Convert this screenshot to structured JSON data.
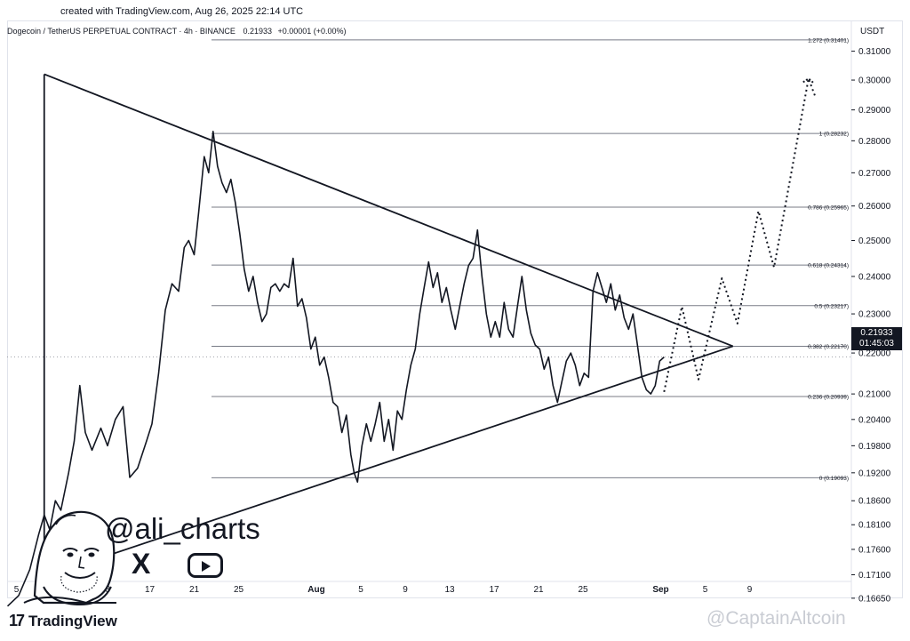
{
  "header": {
    "created": "created with TradingView.com, Aug 26, 2025 22:14 UTC",
    "symbol": "Dogecoin / TetherUS PERPETUAL CONTRACT · 4h · BINANCE",
    "last": "0.21933",
    "change": "+0.00001 (+0.00%)"
  },
  "currency": "USDT",
  "price_badge": {
    "price": "0.21933",
    "countdown": "01:45:03"
  },
  "handle": "@ali_charts",
  "social_x": "X",
  "logo": {
    "mark": "17",
    "word": "TradingView"
  },
  "watermark": "@CaptainAltcoin",
  "chart_data": {
    "type": "line",
    "title": "Dogecoin / TetherUS PERPETUAL CONTRACT · 4h · BINANCE",
    "ylabel": "USDT",
    "y_axis": "log",
    "ylim": [
      0.162,
      0.322
    ],
    "y_ticks": [
      "0.31000",
      "0.30000",
      "0.29000",
      "0.28000",
      "0.27000",
      "0.26000",
      "0.25000",
      "0.24000",
      "0.23000",
      "0.22000",
      "0.21000",
      "0.20400",
      "0.19800",
      "0.19200",
      "0.18600",
      "0.18100",
      "0.17600",
      "0.17100",
      "0.16650"
    ],
    "x_ticks": [
      "5",
      "9",
      "13",
      "17",
      "21",
      "25",
      "Aug",
      "5",
      "9",
      "13",
      "17",
      "21",
      "25",
      "Sep",
      "5",
      "9"
    ],
    "x_tick_days": [
      5,
      9,
      13,
      17,
      21,
      25,
      32,
      36,
      40,
      44,
      48,
      52,
      56,
      63,
      67,
      71
    ],
    "fib_levels": [
      {
        "ratio": "1.272",
        "price": 0.31401,
        "label": "1.272 (0.31401)"
      },
      {
        "ratio": "1",
        "price": 0.28232,
        "label": "1 (0.28232)"
      },
      {
        "ratio": "0.786",
        "price": 0.25965,
        "label": "0.786 (0.25965)"
      },
      {
        "ratio": "0.618",
        "price": 0.24314,
        "label": "0.618 (0.24314)"
      },
      {
        "ratio": "0.5",
        "price": 0.23217,
        "label": "0.5 (0.23217)"
      },
      {
        "ratio": "0.382",
        "price": 0.2217,
        "label": "0.382 (0.22170)"
      },
      {
        "ratio": "0.236",
        "price": 0.20939,
        "label": "0.236 (0.20939)"
      },
      {
        "ratio": "0",
        "price": 0.19093,
        "label": "0 (0.19093)"
      }
    ],
    "triangle": {
      "upper": [
        [
          7.5,
          0.302
        ],
        [
          69.5,
          0.2217
        ]
      ],
      "lower": [
        [
          7.5,
          0.1706
        ],
        [
          69.5,
          0.2217
        ]
      ],
      "left_edge": [
        [
          7.5,
          0.302
        ],
        [
          7.5,
          0.1706
        ]
      ]
    },
    "series": [
      {
        "points": [
          [
            4.2,
            0.165
          ],
          [
            5.2,
            0.167
          ],
          [
            6.2,
            0.172
          ],
          [
            7,
            0.179
          ],
          [
            7.5,
            0.183
          ],
          [
            8,
            0.18
          ],
          [
            8.5,
            0.186
          ],
          [
            9,
            0.184
          ],
          [
            9.7,
            0.192
          ],
          [
            10.2,
            0.199
          ],
          [
            10.7,
            0.212
          ],
          [
            11.2,
            0.201
          ],
          [
            11.8,
            0.197
          ],
          [
            12.6,
            0.202
          ],
          [
            13.2,
            0.198
          ],
          [
            13.9,
            0.204
          ],
          [
            14.6,
            0.207
          ],
          [
            15.2,
            0.191
          ],
          [
            15.9,
            0.193
          ],
          [
            16.7,
            0.199
          ],
          [
            17.2,
            0.203
          ],
          [
            17.8,
            0.215
          ],
          [
            18.4,
            0.231
          ],
          [
            19,
            0.238
          ],
          [
            19.6,
            0.236
          ],
          [
            20.1,
            0.248
          ],
          [
            20.5,
            0.25
          ],
          [
            21,
            0.246
          ],
          [
            21.4,
            0.258
          ],
          [
            21.9,
            0.275
          ],
          [
            22.3,
            0.27
          ],
          [
            22.7,
            0.283
          ],
          [
            23.1,
            0.272
          ],
          [
            23.5,
            0.267
          ],
          [
            23.9,
            0.264
          ],
          [
            24.3,
            0.268
          ],
          [
            24.7,
            0.261
          ],
          [
            25.1,
            0.252
          ],
          [
            25.5,
            0.242
          ],
          [
            25.9,
            0.236
          ],
          [
            26.3,
            0.24
          ],
          [
            26.7,
            0.233
          ],
          [
            27.1,
            0.228
          ],
          [
            27.5,
            0.23
          ],
          [
            27.9,
            0.237
          ],
          [
            28.3,
            0.238
          ],
          [
            28.7,
            0.236
          ],
          [
            29.1,
            0.238
          ],
          [
            29.5,
            0.237
          ],
          [
            29.9,
            0.245
          ],
          [
            30.3,
            0.232
          ],
          [
            30.7,
            0.234
          ],
          [
            31.1,
            0.229
          ],
          [
            31.5,
            0.221
          ],
          [
            31.9,
            0.224
          ],
          [
            32.3,
            0.217
          ],
          [
            32.7,
            0.219
          ],
          [
            33.1,
            0.214
          ],
          [
            33.5,
            0.208
          ],
          [
            33.9,
            0.207
          ],
          [
            34.3,
            0.201
          ],
          [
            34.7,
            0.205
          ],
          [
            35.1,
            0.196
          ],
          [
            35.4,
            0.192
          ],
          [
            35.7,
            0.19
          ],
          [
            36.1,
            0.198
          ],
          [
            36.5,
            0.203
          ],
          [
            36.9,
            0.199
          ],
          [
            37.3,
            0.203
          ],
          [
            37.7,
            0.208
          ],
          [
            38.1,
            0.199
          ],
          [
            38.5,
            0.204
          ],
          [
            38.9,
            0.197
          ],
          [
            39.3,
            0.206
          ],
          [
            39.7,
            0.204
          ],
          [
            40.1,
            0.211
          ],
          [
            40.5,
            0.217
          ],
          [
            40.9,
            0.221
          ],
          [
            41.3,
            0.23
          ],
          [
            41.7,
            0.237
          ],
          [
            42.1,
            0.244
          ],
          [
            42.5,
            0.237
          ],
          [
            42.9,
            0.241
          ],
          [
            43.3,
            0.233
          ],
          [
            43.7,
            0.237
          ],
          [
            44.1,
            0.231
          ],
          [
            44.5,
            0.226
          ],
          [
            44.9,
            0.232
          ],
          [
            45.3,
            0.238
          ],
          [
            45.7,
            0.243
          ],
          [
            46.1,
            0.245
          ],
          [
            46.5,
            0.253
          ],
          [
            46.9,
            0.24
          ],
          [
            47.3,
            0.23
          ],
          [
            47.7,
            0.224
          ],
          [
            48.1,
            0.228
          ],
          [
            48.5,
            0.224
          ],
          [
            48.9,
            0.233
          ],
          [
            49.3,
            0.226
          ],
          [
            49.7,
            0.224
          ],
          [
            50.1,
            0.232
          ],
          [
            50.5,
            0.24
          ],
          [
            50.9,
            0.231
          ],
          [
            51.3,
            0.225
          ],
          [
            51.7,
            0.222
          ],
          [
            52.1,
            0.221
          ],
          [
            52.5,
            0.216
          ],
          [
            52.9,
            0.219
          ],
          [
            53.3,
            0.212
          ],
          [
            53.7,
            0.208
          ],
          [
            54.1,
            0.213
          ],
          [
            54.5,
            0.218
          ],
          [
            54.9,
            0.22
          ],
          [
            55.3,
            0.217
          ],
          [
            55.7,
            0.212
          ],
          [
            56.1,
            0.215
          ],
          [
            56.5,
            0.214
          ],
          [
            56.9,
            0.236
          ],
          [
            57.3,
            0.241
          ],
          [
            57.7,
            0.237
          ],
          [
            58.1,
            0.233
          ],
          [
            58.5,
            0.238
          ],
          [
            58.9,
            0.231
          ],
          [
            59.3,
            0.235
          ],
          [
            59.7,
            0.229
          ],
          [
            60.1,
            0.226
          ],
          [
            60.5,
            0.23
          ],
          [
            60.9,
            0.222
          ],
          [
            61.3,
            0.214
          ],
          [
            61.7,
            0.211
          ],
          [
            62.1,
            0.21
          ],
          [
            62.5,
            0.212
          ],
          [
            62.9,
            0.218
          ],
          [
            63.3,
            0.219
          ]
        ]
      },
      {
        "points": [
          [
            63.3,
            0.2105
          ],
          [
            64.9,
            0.2319
          ],
          [
            66.4,
            0.2135
          ],
          [
            68.5,
            0.2395
          ],
          [
            69.9,
            0.2275
          ],
          [
            71.8,
            0.2585
          ],
          [
            73.2,
            0.2425
          ],
          [
            76.3,
            0.3005
          ],
          [
            76.9,
            0.2945
          ]
        ]
      }
    ]
  }
}
